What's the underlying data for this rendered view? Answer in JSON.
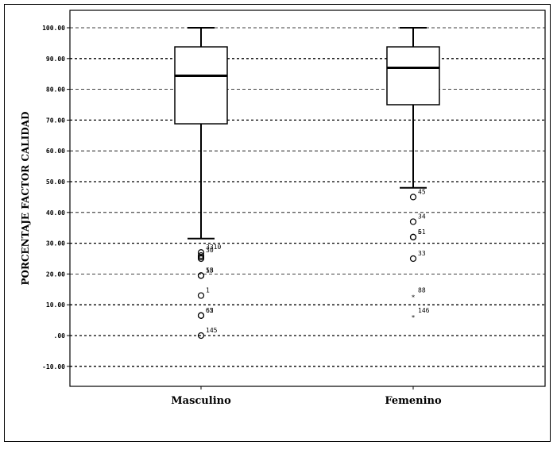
{
  "chart_data": {
    "type": "boxplot",
    "ylabel": "PORCENTAJE FACTOR CALIDAD",
    "xlabel": "",
    "ylim": [
      -16,
      107
    ],
    "y_ticks": [
      -10,
      0,
      10,
      20,
      30,
      40,
      50,
      60,
      70,
      80,
      90,
      100
    ],
    "y_tick_labels": [
      "-10.00",
      ".00",
      "10.00",
      "20.00",
      "30.00",
      "40.00",
      "50.00",
      "60.00",
      "70.00",
      "80.00",
      "90.00",
      "100.00"
    ],
    "grid": "horizontal dashed",
    "categories": [
      "Masculino",
      "Femenino"
    ],
    "boxes": [
      {
        "category": "Masculino",
        "whisker_low": 31.5,
        "q1": 68.8,
        "median": 84.4,
        "q3": 93.8,
        "whisker_high": 100,
        "outliers": [
          {
            "value": 26,
            "label": "30",
            "marker": "circle"
          },
          {
            "value": 25,
            "label": "",
            "marker": "circle"
          },
          {
            "value": 25.5,
            "label": "",
            "marker": "circle"
          },
          {
            "value": 27,
            "label": "3310",
            "marker": "circle"
          },
          {
            "value": 19.5,
            "label": "15",
            "marker": "circle"
          },
          {
            "value": 19.5,
            "label": "58",
            "marker": "circle"
          },
          {
            "value": 13,
            "label": "1",
            "marker": "circle"
          },
          {
            "value": 6.5,
            "label": "62",
            "marker": "circle"
          },
          {
            "value": 6.5,
            "label": "65",
            "marker": "circle"
          },
          {
            "value": 0,
            "label": "145",
            "marker": "circle"
          }
        ]
      },
      {
        "category": "Femenino",
        "whisker_low": 48,
        "q1": 75,
        "median": 87,
        "q3": 93.8,
        "whisker_high": 100,
        "outliers": [
          {
            "value": 45,
            "label": "45",
            "marker": "circle"
          },
          {
            "value": 37,
            "label": "34",
            "marker": "circle"
          },
          {
            "value": 32,
            "label": "6",
            "marker": "circle"
          },
          {
            "value": 32,
            "label": "51",
            "marker": "circle"
          },
          {
            "value": 25,
            "label": "33",
            "marker": "circle"
          },
          {
            "value": 13,
            "label": "88",
            "marker": "star"
          },
          {
            "value": 6.5,
            "label": "146",
            "marker": "star"
          }
        ]
      }
    ]
  }
}
